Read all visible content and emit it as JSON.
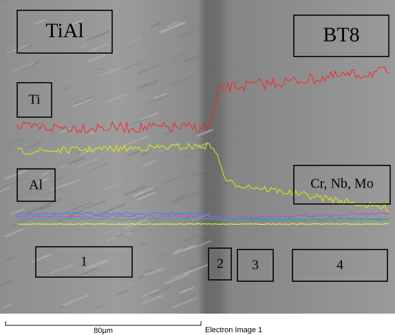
{
  "image": {
    "labels": {
      "left_material": "TiAl",
      "right_material": "BT8",
      "ti": "Ti",
      "al": "Al",
      "others": "Cr, Nb, Mo"
    },
    "zones": [
      "1",
      "2",
      "3",
      "4"
    ],
    "scale_bar": "80µm",
    "caption": "Electron Image 1"
  }
}
